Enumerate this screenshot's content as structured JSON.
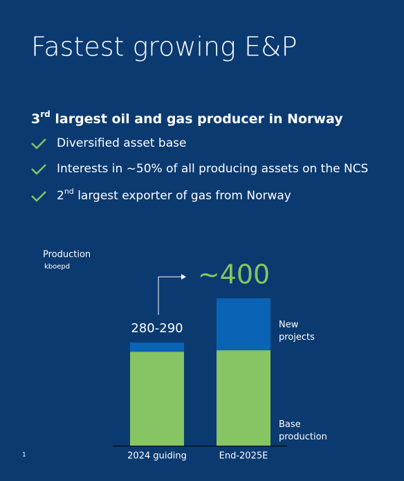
{
  "header": {
    "title": "Fastest growing E&P"
  },
  "subtitle": {
    "number": "3",
    "suffix": "rd",
    "text": " largest oil and gas producer in Norway"
  },
  "bullets": [
    {
      "text": "Diversified asset base"
    },
    {
      "text": "Interests in ~50% of all producing assets on the NCS"
    },
    {
      "number": "2",
      "suffix": "nd",
      "text": " largest exporter of gas from Norway"
    }
  ],
  "page_number": "1",
  "chart_data": {
    "type": "stacked-bar",
    "y_label": "Production",
    "y_unit": "kboepd",
    "categories": [
      "2024 guiding",
      "End-2025E"
    ],
    "series": [
      {
        "name": "Base production",
        "color": "#86c464",
        "values": [
          255,
          259
        ]
      },
      {
        "name": "New projects",
        "color": "#0a63b4",
        "values": [
          25,
          141
        ]
      }
    ],
    "total_labels": [
      "280-290",
      "~400"
    ],
    "total_label_colors": [
      "#ffffff",
      "#86c464"
    ]
  }
}
